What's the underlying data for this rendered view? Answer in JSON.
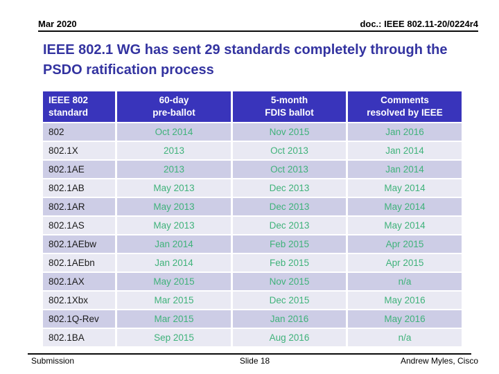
{
  "slide": {
    "header": {
      "date": "Mar 2020",
      "doc": "doc.: IEEE 802.11-20/0224r4"
    },
    "title": "IEEE 802.1 WG has sent 29 standards completely through the PSDO ratification process",
    "footer": {
      "left": "Submission",
      "center": "Slide 18",
      "right": "Andrew Myles, Cisco"
    }
  },
  "table": {
    "columns": [
      "IEEE 802\nstandard",
      "60-day\npre-ballot",
      "5-month\nFDIS ballot",
      "Comments\nresolved by IEEE"
    ],
    "rows": [
      {
        "standard": "802",
        "preballot": "Oct 2014",
        "fdis": "Nov 2015",
        "comments": "Jan 2016"
      },
      {
        "standard": "802.1X",
        "preballot": "2013",
        "fdis": "Oct 2013",
        "comments": "Jan 2014"
      },
      {
        "standard": "802.1AE",
        "preballot": "2013",
        "fdis": "Oct 2013",
        "comments": "Jan 2014"
      },
      {
        "standard": "802.1AB",
        "preballot": "May 2013",
        "fdis": "Dec 2013",
        "comments": "May 2014"
      },
      {
        "standard": "802.1AR",
        "preballot": "May 2013",
        "fdis": "Dec 2013",
        "comments": "May 2014"
      },
      {
        "standard": "802.1AS",
        "preballot": "May 2013",
        "fdis": "Dec 2013",
        "comments": "May 2014"
      },
      {
        "standard": "802.1AEbw",
        "preballot": "Jan 2014",
        "fdis": "Feb 2015",
        "comments": "Apr 2015"
      },
      {
        "standard": "802.1AEbn",
        "preballot": "Jan 2014",
        "fdis": "Feb 2015",
        "comments": "Apr 2015"
      },
      {
        "standard": "802.1AX",
        "preballot": "May 2015",
        "fdis": "Nov 2015",
        "comments": "n/a"
      },
      {
        "standard": "802.1Xbx",
        "preballot": "Mar 2015",
        "fdis": "Dec 2015",
        "comments": "May 2016"
      },
      {
        "standard": "802.1Q-Rev",
        "preballot": "Mar 2015",
        "fdis": "Jan 2016",
        "comments": "May 2016"
      },
      {
        "standard": "802.1BA",
        "preballot": "Sep 2015",
        "fdis": "Aug 2016",
        "comments": "n/a"
      }
    ]
  },
  "colors": {
    "table_header_bg": "#3934BB",
    "row_dark": "#CDCDE6",
    "row_light": "#E9E9F3",
    "date_green": "#3FB27A",
    "title_blue": "#3333A0",
    "rule_black": "#0A0A0A"
  }
}
